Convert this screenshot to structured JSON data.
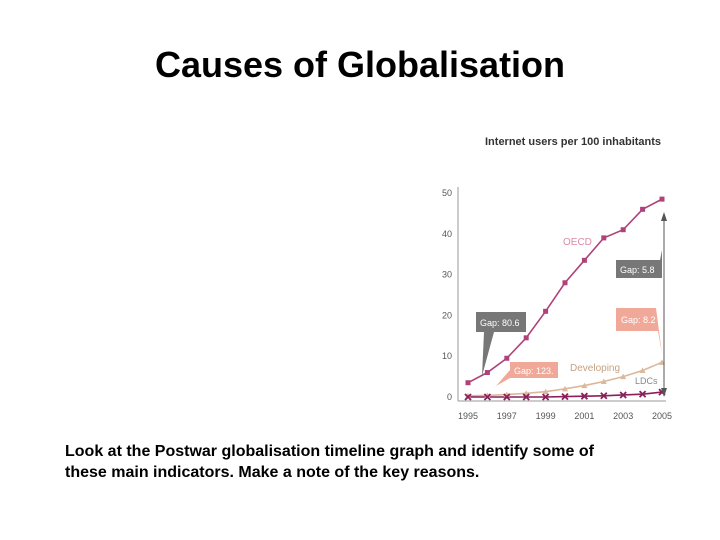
{
  "slide": {
    "title": "Causes of Globalisation",
    "body_line1": "Look at the Postwar globalisation timeline  graph and identify some of",
    "body_line2": "these main indicators. Make a note of the key reasons."
  },
  "chart_data": {
    "type": "line",
    "title": "Internet users per 100 inhabitants",
    "xlabel": "",
    "ylabel": "",
    "x": [
      1995,
      1996,
      1997,
      1998,
      1999,
      2000,
      2001,
      2002,
      2003,
      2004,
      2005
    ],
    "x_tick_labels": [
      "1995",
      "1997",
      "1999",
      "2001",
      "2003",
      "2005"
    ],
    "y_tick_labels": [
      "0",
      "10",
      "20",
      "30",
      "40",
      "50"
    ],
    "ylim": [
      0,
      50
    ],
    "grid": false,
    "series": [
      {
        "name": "OECD",
        "color": "#b0427a",
        "marker": "square",
        "values": [
          3.5,
          6,
          9.5,
          14.5,
          21,
          28,
          33.5,
          39,
          41,
          46,
          48.5
        ]
      },
      {
        "name": "Developing",
        "color": "#dcb79a",
        "marker": "triangle",
        "values": [
          0.3,
          0.4,
          0.6,
          0.9,
          1.3,
          2,
          2.8,
          3.8,
          5,
          6.5,
          8.5
        ]
      },
      {
        "name": "LDCs",
        "color": "#8a1f5c",
        "marker": "x",
        "values": [
          0,
          0,
          0,
          0,
          0,
          0.1,
          0.2,
          0.3,
          0.5,
          0.7,
          1.2
        ]
      }
    ],
    "annotations": [
      {
        "id": "gap-1995-oecd",
        "text": "Gap: 80.6",
        "color": "#777777"
      },
      {
        "id": "gap-1995-dev",
        "text": "Gap: 123.",
        "color": "#f0a898"
      },
      {
        "id": "gap-2005-oecd",
        "text": "Gap: 5.8",
        "color": "#777777"
      },
      {
        "id": "gap-2005-dev",
        "text": "Gap: 8.2",
        "color": "#f0a898"
      }
    ],
    "series_labels": {
      "oecd": "OECD",
      "developing": "Developing",
      "ldcs": "LDCs"
    }
  }
}
